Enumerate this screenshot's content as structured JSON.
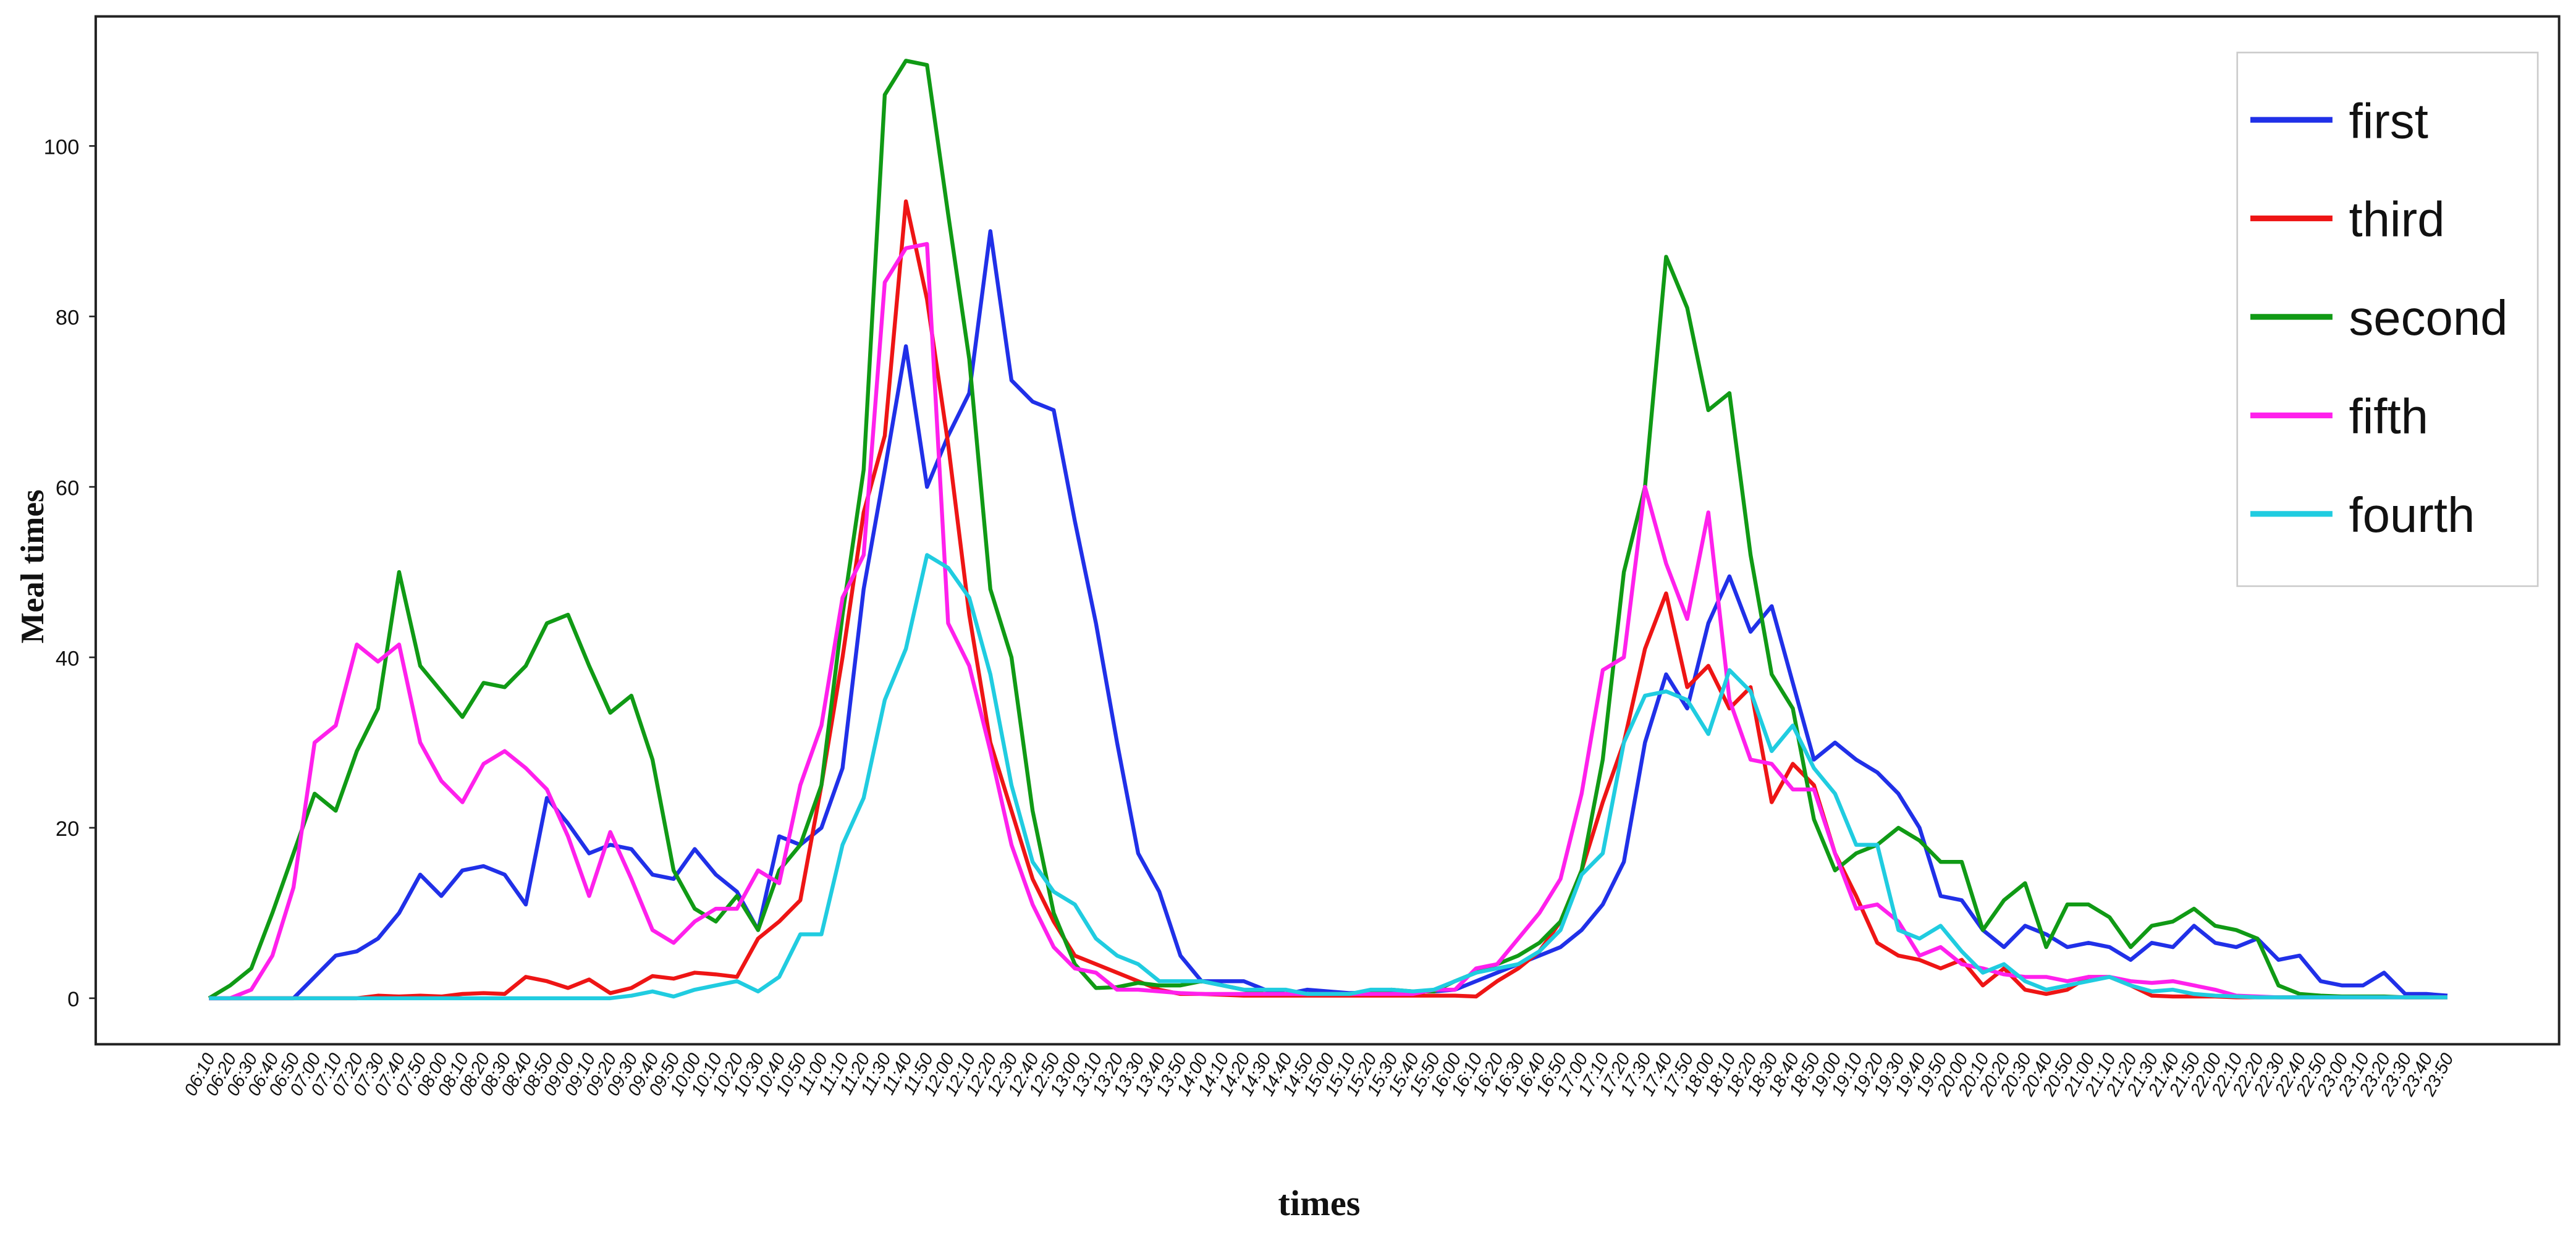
{
  "chart_data": {
    "type": "line",
    "xlabel": "times",
    "ylabel": "Meal times",
    "ylim": [
      -5.4,
      115.2
    ],
    "yticks": [
      0,
      20,
      40,
      60,
      80,
      100
    ],
    "legend": "upper right",
    "categories": [
      "06:10",
      "06:20",
      "06:30",
      "06:40",
      "06:50",
      "07:00",
      "07:10",
      "07:20",
      "07:30",
      "07:40",
      "07:50",
      "08:00",
      "08:10",
      "08:20",
      "08:30",
      "08:40",
      "08:50",
      "09:00",
      "09:10",
      "09:20",
      "09:30",
      "09:40",
      "09:50",
      "10:00",
      "10:10",
      "10:20",
      "10:30",
      "10:40",
      "10:50",
      "11:00",
      "11:10",
      "11:20",
      "11:30",
      "11:40",
      "11:50",
      "12:00",
      "12:10",
      "12:20",
      "12:30",
      "12:40",
      "12:50",
      "13:00",
      "13:10",
      "13:20",
      "13:30",
      "13:40",
      "13:50",
      "14:00",
      "14:10",
      "14:20",
      "14:30",
      "14:40",
      "14:50",
      "15:00",
      "15:10",
      "15:20",
      "15:30",
      "15:40",
      "15:50",
      "16:00",
      "16:10",
      "16:20",
      "16:30",
      "16:40",
      "16:50",
      "17:00",
      "17:10",
      "17:20",
      "17:30",
      "17:40",
      "17:50",
      "18:00",
      "18:10",
      "18:20",
      "18:30",
      "18:40",
      "18:50",
      "19:00",
      "19:10",
      "19:20",
      "19:30",
      "19:40",
      "19:50",
      "20:00",
      "20:10",
      "20:20",
      "20:30",
      "20:40",
      "20:50",
      "21:00",
      "21:10",
      "21:20",
      "21:30",
      "21:40",
      "21:50",
      "22:00",
      "22:10",
      "22:20",
      "22:30",
      "22:40",
      "22:50",
      "23:00",
      "23:10",
      "23:20",
      "23:30",
      "23:40",
      "23:50"
    ],
    "series": [
      {
        "name": "first",
        "color": "#2030e8",
        "values": [
          0,
          0,
          0,
          0,
          0,
          2.5,
          5,
          5.5,
          7,
          10,
          14.5,
          12,
          15,
          15.5,
          14.5,
          11,
          23.5,
          20.5,
          17,
          18,
          17.5,
          14.5,
          14,
          17.5,
          14.5,
          12.5,
          8,
          19,
          18,
          20,
          27,
          48,
          62,
          76.5,
          60,
          66,
          71,
          90,
          72.5,
          70,
          69,
          56,
          44,
          30,
          17,
          12.5,
          5,
          2,
          2,
          2,
          1,
          0.5,
          1,
          0.8,
          0.6,
          0.7,
          0.8,
          0.8,
          0.8,
          1,
          2,
          3,
          4,
          5,
          6,
          8,
          11,
          16,
          30,
          38,
          34,
          44,
          49.5,
          43,
          46,
          37,
          28,
          30,
          28,
          26.5,
          24,
          20,
          12,
          11.5,
          8,
          6,
          8.5,
          7.5,
          6,
          6.5,
          6,
          4.5,
          6.5,
          6,
          8.5,
          6.5,
          6,
          7,
          4.5,
          5,
          2,
          1.5,
          1.5,
          3,
          0.5,
          0.5,
          0.3
        ]
      },
      {
        "name": "third",
        "color": "#ee1515",
        "values": [
          0,
          0,
          0,
          0,
          0,
          0,
          0,
          0,
          0.3,
          0.2,
          0.3,
          0.2,
          0.5,
          0.6,
          0.5,
          2.5,
          2,
          1.2,
          2.2,
          0.6,
          1.2,
          2.6,
          2.3,
          3,
          2.8,
          2.5,
          7,
          9,
          11.5,
          25,
          40,
          57,
          66,
          93.5,
          82,
          65,
          45,
          30,
          22,
          14,
          9,
          5,
          4,
          3,
          2,
          1,
          0.5,
          0.5,
          0.4,
          0.3,
          0.3,
          0.3,
          0.3,
          0.3,
          0.3,
          0.3,
          0.3,
          0.3,
          0.3,
          0.3,
          0.2,
          2,
          3.5,
          5.5,
          9,
          15,
          23,
          30,
          41,
          47.5,
          36.5,
          39,
          34,
          36.5,
          23,
          27.5,
          25,
          17,
          12,
          6.5,
          5,
          4.5,
          3.5,
          4.5,
          1.5,
          3.5,
          1,
          0.5,
          1,
          2.5,
          2.5,
          1.5,
          0.3,
          0.2,
          0.2,
          0.2,
          0.1,
          0.1,
          0.1,
          0.1,
          0.1,
          0.1,
          0.1,
          0.1,
          0.1,
          0.1,
          0.1
        ]
      },
      {
        "name": "second",
        "color": "#109a15",
        "values": [
          0,
          1.5,
          3.5,
          10,
          17,
          24,
          22,
          29,
          34,
          50,
          39,
          36,
          33,
          37,
          36.5,
          39,
          44,
          45,
          39,
          33.5,
          35.5,
          28,
          15,
          10.5,
          9,
          12,
          8,
          15,
          18,
          25,
          45,
          62,
          106,
          110,
          109.5,
          92,
          75,
          48,
          40,
          22,
          10,
          4,
          1.2,
          1.3,
          1.8,
          1.5,
          1.5,
          2,
          1.5,
          1,
          0.5,
          0.5,
          0.5,
          0.5,
          0.5,
          0.7,
          1,
          0.8,
          0.8,
          2,
          3,
          4,
          5,
          6.5,
          9,
          15,
          28,
          50,
          60,
          87,
          81,
          69,
          71,
          52,
          38,
          34,
          21,
          15,
          17,
          18,
          20,
          18.5,
          16,
          16,
          8,
          11.5,
          13.5,
          6,
          11,
          11,
          9.5,
          6,
          8.5,
          9,
          10.5,
          8.5,
          8,
          7,
          1.5,
          0.5,
          0.3,
          0.2,
          0.2,
          0.2,
          0.1,
          0.1,
          0.1
        ]
      },
      {
        "name": "fifth",
        "color": "#ff20ec",
        "values": [
          0,
          0,
          1,
          5,
          13,
          30,
          32,
          41.5,
          39.5,
          41.5,
          30,
          25.5,
          23,
          27.5,
          29,
          27,
          24.5,
          19,
          12,
          19.5,
          14,
          8,
          6.5,
          9,
          10.5,
          10.5,
          15,
          13.5,
          25,
          32,
          47,
          52,
          84,
          88,
          88.5,
          44,
          39,
          29,
          18,
          11,
          6,
          3.5,
          3,
          1,
          1,
          0.8,
          0.6,
          0.5,
          0.5,
          0.5,
          0.5,
          0.5,
          0.5,
          0.5,
          0.5,
          0.5,
          0.5,
          0.5,
          1,
          1,
          3.5,
          4,
          7,
          10,
          14,
          24,
          38.5,
          40,
          60,
          51,
          44.5,
          57,
          35,
          28,
          27.5,
          24.5,
          24.5,
          17,
          10.5,
          11,
          9,
          5,
          6,
          4,
          3.5,
          2.8,
          2.5,
          2.5,
          2,
          2.5,
          2.5,
          2,
          1.8,
          2,
          1.5,
          1,
          0.3,
          0.2,
          0.1,
          0.1,
          0.1,
          0.1,
          0.1,
          0.1,
          0.1,
          0.1,
          0.1
        ]
      },
      {
        "name": "fourth",
        "color": "#20cce0",
        "values": [
          0,
          0,
          0,
          0,
          0,
          0,
          0,
          0,
          0,
          0,
          0,
          0,
          0,
          0,
          0,
          0,
          0,
          0,
          0,
          0,
          0.3,
          0.8,
          0.2,
          1,
          1.5,
          2,
          0.8,
          2.5,
          7.5,
          7.5,
          18,
          23.5,
          35,
          41,
          52,
          50.5,
          47,
          38,
          25,
          16,
          12.5,
          11,
          7,
          5,
          4,
          2,
          2,
          2,
          1.5,
          1,
          1,
          1,
          0.5,
          0.5,
          0.5,
          1,
          1,
          0.8,
          1,
          2,
          3,
          3.5,
          4,
          5.5,
          8,
          14.5,
          17,
          30,
          35.5,
          36,
          35,
          31,
          38.5,
          36,
          29,
          32,
          27,
          24,
          18,
          18,
          8,
          7,
          8.5,
          5.5,
          3,
          4,
          2,
          1,
          1.5,
          2,
          2.5,
          1.5,
          0.8,
          1,
          0.5,
          0.3,
          0.2,
          0.1,
          0.1,
          0.1,
          0.1,
          0.1,
          0.1,
          0.1,
          0.1,
          0.1,
          0.1
        ]
      }
    ]
  }
}
